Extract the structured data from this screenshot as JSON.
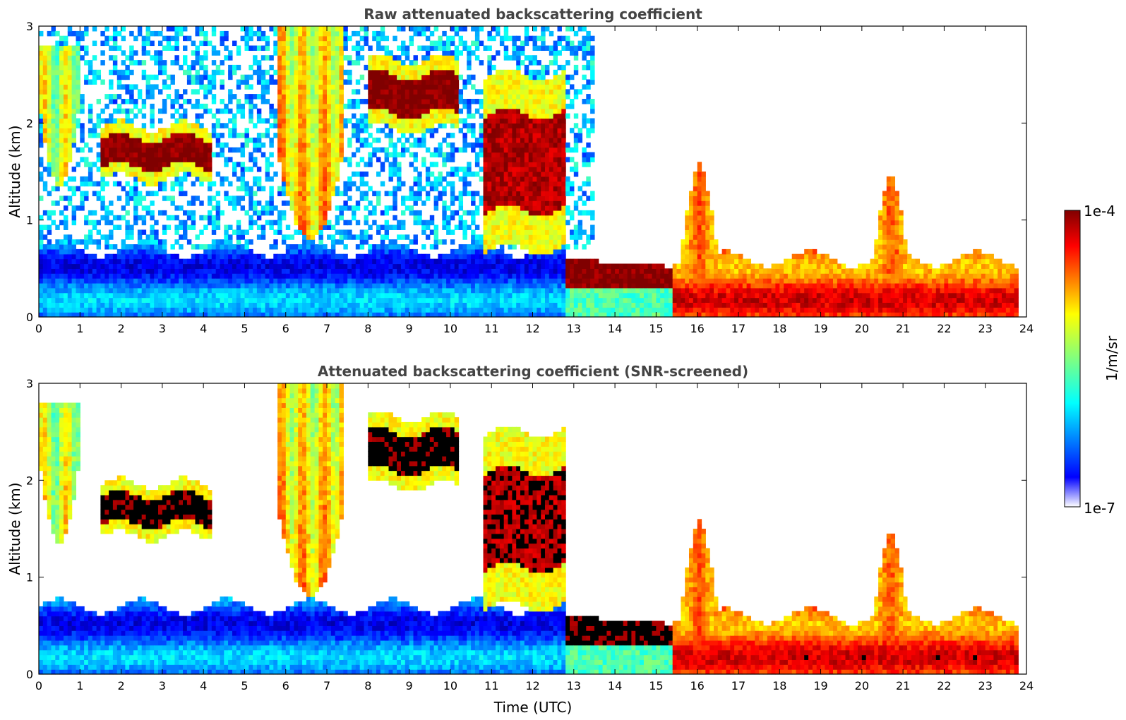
{
  "chart_data": [
    {
      "type": "heatmap",
      "title": "Raw attenuated backscattering coefficient",
      "xlabel": "",
      "ylabel": "Altitude (km)",
      "xlim": [
        0,
        24
      ],
      "ylim": [
        0,
        3
      ],
      "x_ticks": [
        "0",
        "1",
        "2",
        "3",
        "4",
        "5",
        "6",
        "7",
        "8",
        "9",
        "10",
        "11",
        "12",
        "13",
        "14",
        "15",
        "16",
        "17",
        "18",
        "19",
        "20",
        "21",
        "22",
        "23",
        "24"
      ],
      "y_ticks": [
        "0",
        "1",
        "2",
        "3"
      ],
      "screened": false,
      "features": [
        {
          "kind": "boundary_layer",
          "t0": 0,
          "t1": 12.8,
          "z_top": 0.7,
          "level": 0.22
        },
        {
          "kind": "elevated_layer",
          "t0": 12.8,
          "t1": 15.4,
          "z_bottom": 0.32,
          "z_top": 0.52,
          "level": 1.0
        },
        {
          "kind": "boundary_layer",
          "t0": 15.4,
          "t1": 23.8,
          "z_top": 0.6,
          "level": 0.8
        },
        {
          "kind": "cloud_layer",
          "t0": 1.5,
          "t1": 4.2,
          "z_center": 1.7,
          "thickness": 0.15,
          "level": 1.0
        },
        {
          "kind": "cloud_layer",
          "t0": 8.0,
          "t1": 10.2,
          "z_center": 2.3,
          "thickness": 0.2,
          "level": 1.0
        },
        {
          "kind": "cloud_layer",
          "t0": 10.8,
          "t1": 12.8,
          "z_center": 1.6,
          "thickness": 0.5,
          "level": 0.95
        },
        {
          "kind": "virga",
          "t0": 5.8,
          "t1": 7.4,
          "z_bottom": 0.8,
          "z_top": 3.0,
          "level": 0.7
        },
        {
          "kind": "virga",
          "t0": 0,
          "t1": 1.0,
          "z_bottom": 1.35,
          "z_top": 2.8,
          "level": 0.6
        },
        {
          "kind": "convective_plume",
          "t0": 15.5,
          "t1": 16.6,
          "z_bottom": 0.3,
          "z_top": 1.6,
          "level": 0.8
        },
        {
          "kind": "convective_plume",
          "t0": 20.2,
          "t1": 21.2,
          "z_bottom": 0.3,
          "z_top": 1.5,
          "level": 0.8
        }
      ]
    },
    {
      "type": "heatmap",
      "title": "Attenuated backscattering coefficient (SNR-screened)",
      "xlabel": "Time (UTC)",
      "ylabel": "Altitude (km)",
      "xlim": [
        0,
        24
      ],
      "ylim": [
        0,
        3
      ],
      "x_ticks": [
        "0",
        "1",
        "2",
        "3",
        "4",
        "5",
        "6",
        "7",
        "8",
        "9",
        "10",
        "11",
        "12",
        "13",
        "14",
        "15",
        "16",
        "17",
        "18",
        "19",
        "20",
        "21",
        "22",
        "23",
        "24"
      ],
      "y_ticks": [
        "0",
        "1",
        "2",
        "3"
      ],
      "screened": true
    }
  ],
  "colorbar": {
    "label": "1/m/sr",
    "max_label": "1e-4",
    "min_label": "1e-7",
    "range": [
      1e-07,
      0.0001
    ],
    "scale": "log",
    "colormap": "jet",
    "saturated_color": "#000000"
  },
  "colors": {
    "jet": [
      "#00008f",
      "#0000ff",
      "#00ffff",
      "#ffff00",
      "#ff0000",
      "#800000"
    ],
    "title": "#444444",
    "axis": "#000000"
  }
}
